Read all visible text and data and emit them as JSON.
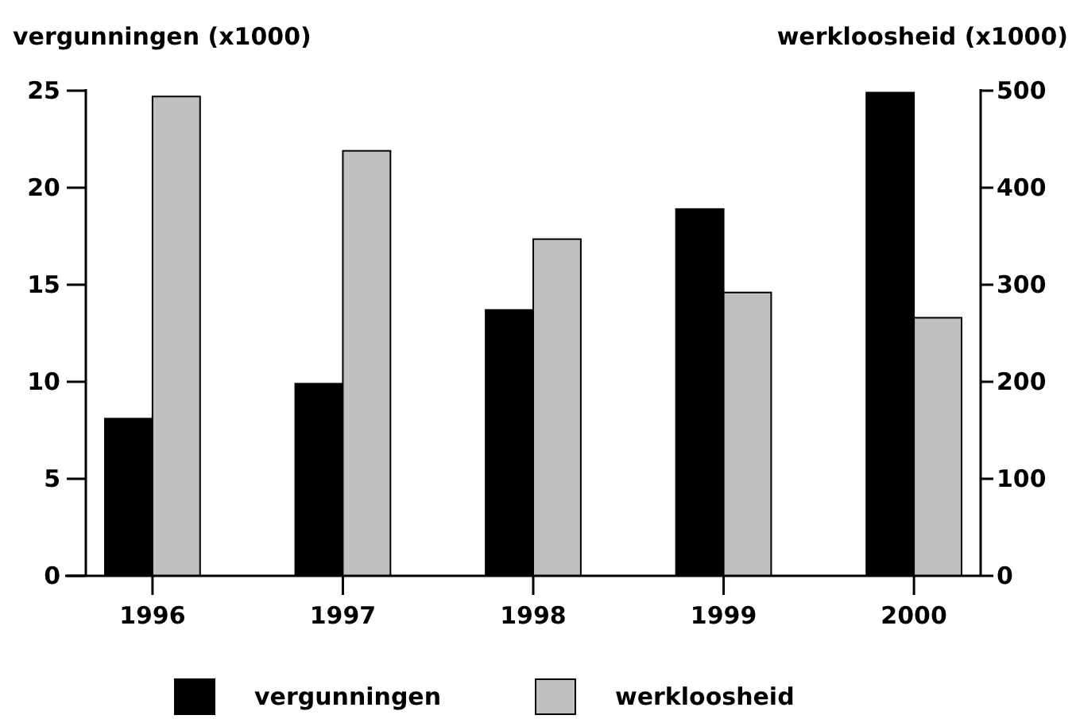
{
  "chart_data": {
    "type": "bar",
    "categories": [
      "1996",
      "1997",
      "1998",
      "1999",
      "2000"
    ],
    "series": [
      {
        "name": "vergunningen",
        "color": "#000000",
        "values": [
          8.1,
          9.9,
          13.7,
          18.9,
          24.9
        ]
      },
      {
        "name": "werkloosheid",
        "color": "#c0c0c0",
        "axis": "y2",
        "values": [
          494,
          438,
          347,
          292,
          266
        ]
      }
    ],
    "ylabel": "vergunningen (x1000)",
    "y2label": "werkloosheid (x1000)",
    "ylim": [
      0,
      25
    ],
    "yticks": [
      0,
      5,
      10,
      15,
      20,
      25
    ],
    "y2lim": [
      0,
      500
    ],
    "y2ticks": [
      0,
      100,
      200,
      300,
      400,
      500
    ],
    "grid": false,
    "legend": "bottom"
  }
}
